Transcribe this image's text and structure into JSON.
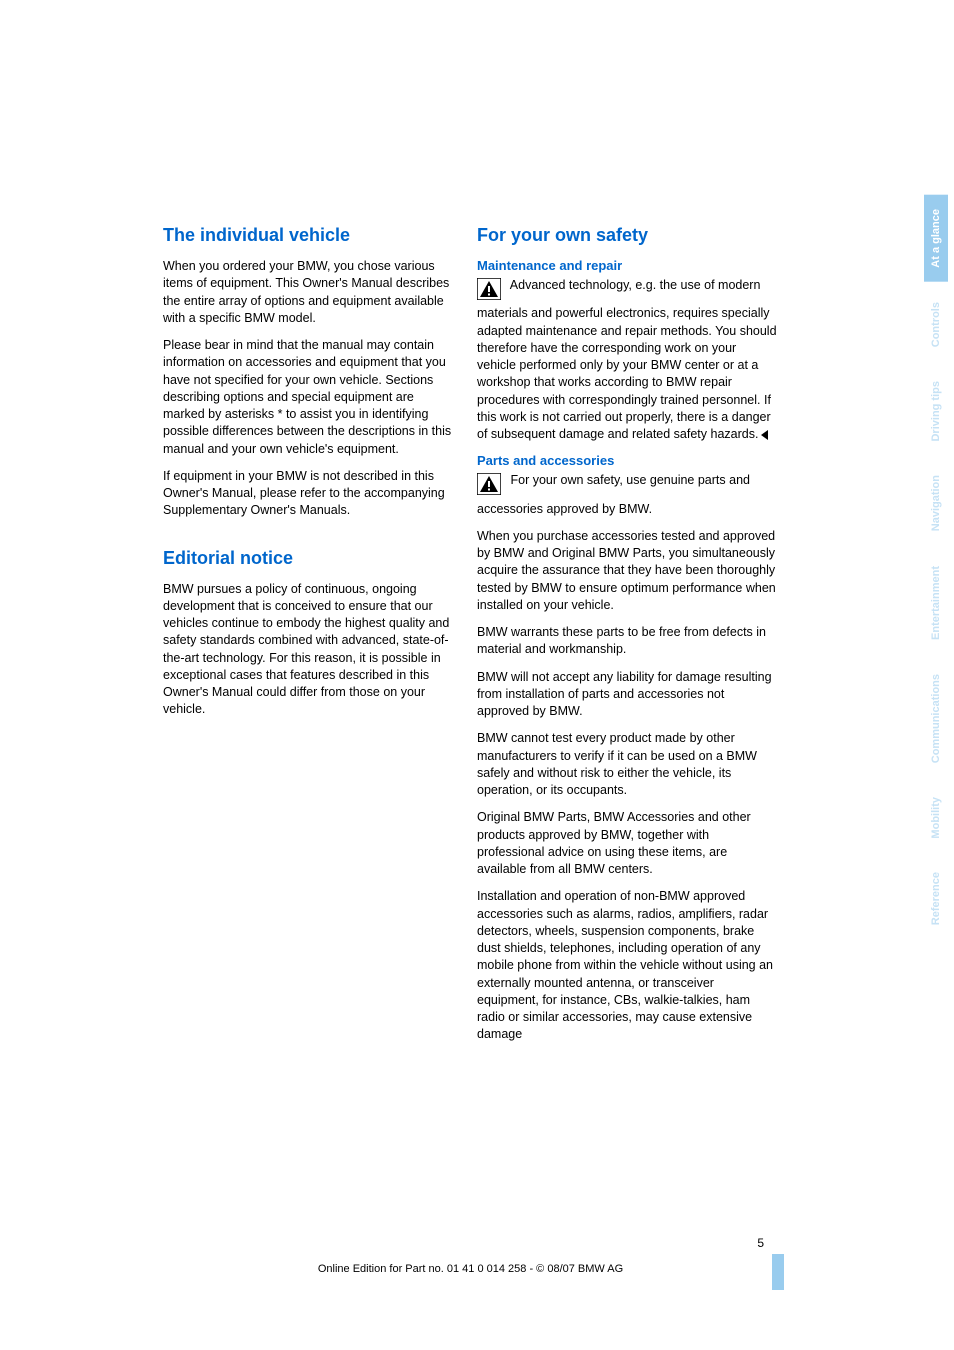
{
  "pageNumber": "5",
  "footer": "Online Edition for Part no. 01 41 0 014 258 - © 08/07 BMW AG",
  "colors": {
    "heading": "#0066cc",
    "tabFilled": "#99ccee",
    "tabFilledText": "#ffffff",
    "tabLightText": "#c6e2f5"
  },
  "left": {
    "h1": "The individual vehicle",
    "p1": "When you ordered your BMW, you chose various items of equipment. This Owner's Manual describes the entire array of options and equipment available with a specific BMW model.",
    "p2": "Please bear in mind that the manual may contain information on accessories and equipment that you have not specified for your own vehicle. Sections describing options and special equipment are marked by asterisks * to assist you in identifying possible differences between the descriptions in this manual and your own vehicle's equipment.",
    "p3": "If equipment in your BMW is not described in this Owner's Manual, please refer to the accompanying Supplementary Owner's Manuals.",
    "h2": "Editorial notice",
    "p4": "BMW pursues a policy of continuous, ongoing development that is conceived to ensure that our vehicles continue to embody the highest quality and safety standards combined with advanced, state-of-the-art technology. For this reason, it is possible in exceptional cases that features described in this Owner's Manual could differ from those on your vehicle."
  },
  "right": {
    "h1": "For your own safety",
    "sh1": "Maintenance and repair",
    "p1": "Advanced technology, e.g. the use of modern materials and powerful electronics, requires specially adapted maintenance and repair methods. You should therefore have the corresponding work on your vehicle performed only by your BMW center or at a workshop that works according to BMW repair procedures with correspondingly trained personnel. If this work is not carried out properly, there is a danger of subsequent damage and related safety hazards.",
    "sh2": "Parts and accessories",
    "p2": "For your own safety, use genuine parts and accessories approved by BMW.",
    "p3": "When you purchase accessories tested and approved by BMW and Original BMW Parts, you simultaneously acquire the assurance that they have been thoroughly tested by BMW to ensure optimum performance when installed on your vehicle.",
    "p4": "BMW warrants these parts to be free from defects in material and workmanship.",
    "p5": "BMW will not accept any liability for damage resulting from installation of parts and accessories not approved by BMW.",
    "p6": "BMW cannot test every product made by other manufacturers to verify if it can be used on a BMW safely and without risk to either the vehicle, its operation, or its occupants.",
    "p7": "Original BMW Parts, BMW Accessories and other products approved by BMW, together with professional advice on using these items, are available from all BMW centers.",
    "p8": "Installation and operation of non-BMW approved accessories such as alarms, radios, amplifiers, radar detectors, wheels, suspension components, brake dust shields, telephones, including operation of any mobile phone from within the vehicle without using an externally mounted antenna, or transceiver equipment, for instance, CBs, walkie-talkies, ham radio or similar accessories, may cause extensive damage"
  },
  "tabs": [
    {
      "label": "At a glance",
      "filled": true
    },
    {
      "label": "Controls",
      "filled": false
    },
    {
      "label": "Driving tips",
      "filled": false
    },
    {
      "label": "Navigation",
      "filled": false
    },
    {
      "label": "Entertainment",
      "filled": false
    },
    {
      "label": "Communications",
      "filled": false
    },
    {
      "label": "Mobility",
      "filled": false
    },
    {
      "label": "Reference",
      "filled": false
    }
  ]
}
